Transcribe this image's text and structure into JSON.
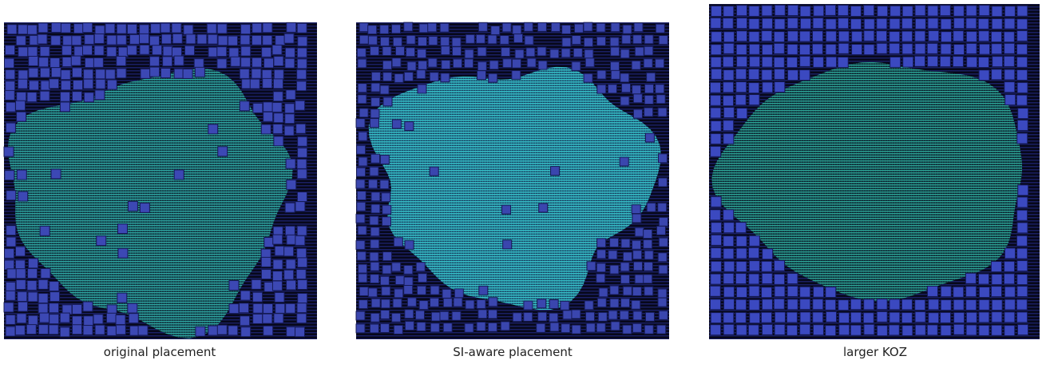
{
  "panels": [
    {
      "caption": "original placement"
    },
    {
      "caption": "SI-aware placement"
    },
    {
      "caption": "larger KOZ"
    }
  ]
}
